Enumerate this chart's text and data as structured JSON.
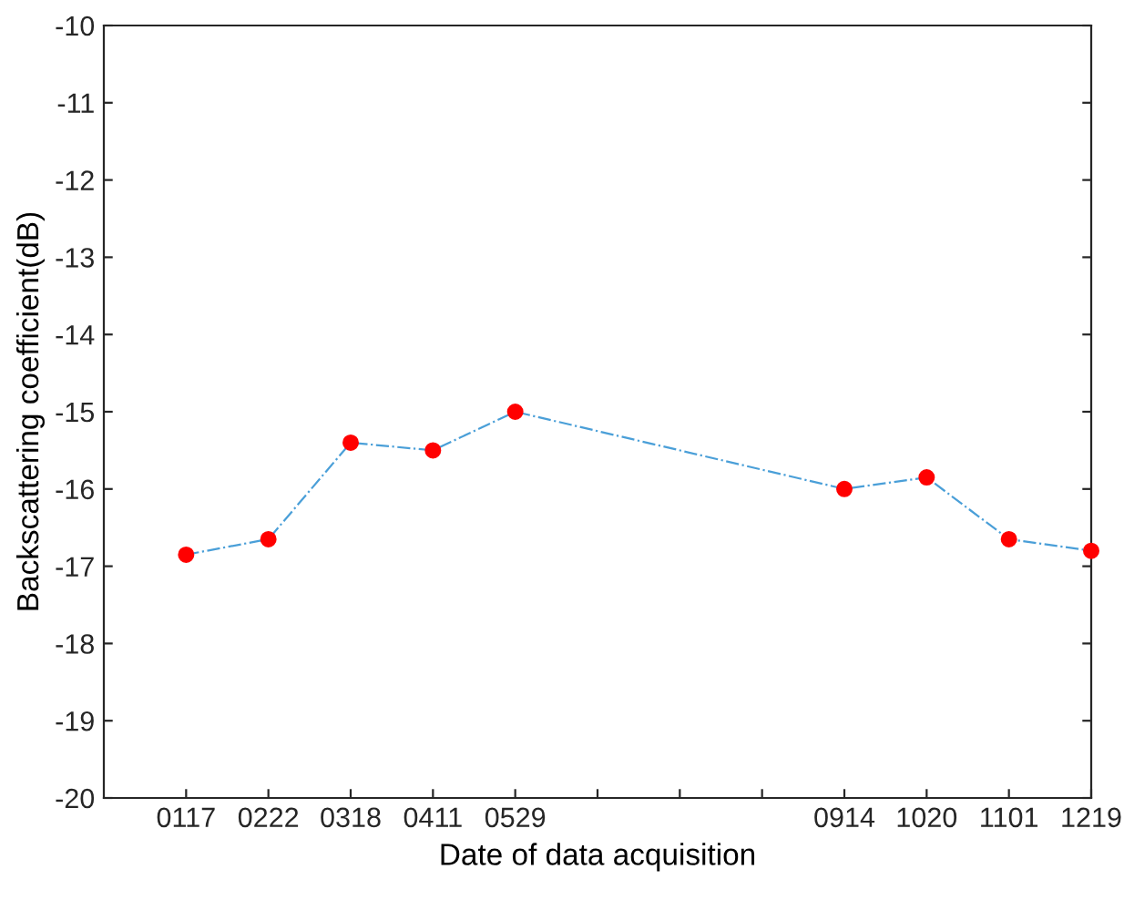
{
  "chart_data": {
    "type": "line",
    "xlabel": "Date of data acquisition",
    "ylabel": "Backscattering coefficient(dB)",
    "ylim": [
      -20,
      -10
    ],
    "yticks": [
      -20,
      -19,
      -18,
      -17,
      -16,
      -15,
      -14,
      -13,
      -12,
      -11,
      -10
    ],
    "categories": [
      "0117",
      "0222",
      "0318",
      "0411",
      "0529",
      null,
      null,
      null,
      "0914",
      "1020",
      "1101",
      "1219"
    ],
    "series": [
      {
        "color": "#4a9fd8",
        "marker": "none",
        "values": [
          -16.85,
          -16.65,
          -15.4,
          -15.5,
          -15.0,
          null,
          null,
          null,
          -16.0,
          -15.85,
          -16.65,
          -16.8
        ]
      },
      {
        "type": "scatter",
        "color": "#ff0000",
        "marker": "circle",
        "values": [
          -16.85,
          -16.65,
          -15.4,
          -15.5,
          -15.0,
          null,
          null,
          null,
          -16.0,
          -15.85,
          -16.65,
          -16.8
        ]
      }
    ],
    "line_style": "dashed",
    "grid": false,
    "legend": false
  }
}
